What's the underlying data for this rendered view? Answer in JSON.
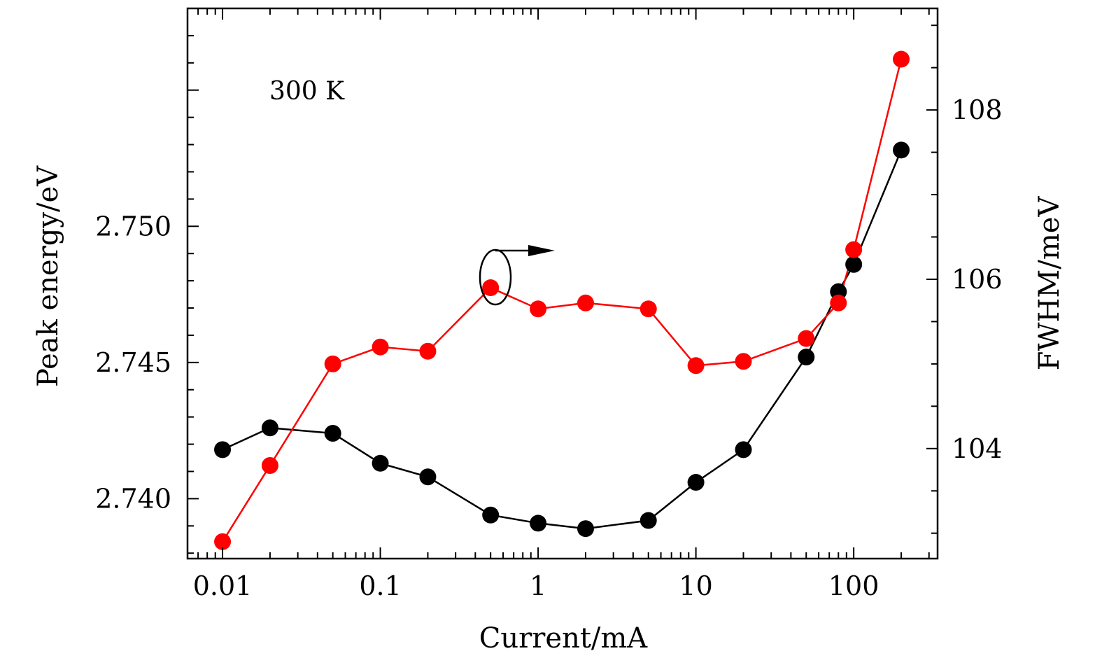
{
  "chart_data": {
    "type": "line",
    "annotation": "300 K",
    "xlabel": "Current/mA",
    "ylabel_left": "Peak energy/eV",
    "ylabel_right": "FWHM/meV",
    "x_scale": "log",
    "xlim": [
      0.006,
      340
    ],
    "ylim_left": [
      2.7378,
      2.758
    ],
    "ylim_right": [
      102.7,
      109.2
    ],
    "x_ticks": [
      {
        "value": 0.01,
        "label": "0.01"
      },
      {
        "value": 0.1,
        "label": "0.1"
      },
      {
        "value": 1,
        "label": "1"
      },
      {
        "value": 10,
        "label": "10"
      },
      {
        "value": 100,
        "label": "100"
      }
    ],
    "y_ticks_left": [
      {
        "value": 2.74,
        "label": "2.740"
      },
      {
        "value": 2.745,
        "label": "2.745"
      },
      {
        "value": 2.75,
        "label": "2.750"
      }
    ],
    "y_ticks_right": [
      {
        "value": 104,
        "label": "104"
      },
      {
        "value": 106,
        "label": "106"
      },
      {
        "value": 108,
        "label": "108"
      }
    ],
    "grid": false,
    "series": [
      {
        "axis": "left",
        "color": "#000000",
        "x": [
          0.01,
          0.02,
          0.05,
          0.1,
          0.2,
          0.5,
          1,
          2,
          5,
          10,
          20,
          50,
          80,
          100,
          200
        ],
        "values": [
          2.7418,
          2.7426,
          2.7424,
          2.7413,
          2.7408,
          2.7394,
          2.7391,
          2.7389,
          2.7392,
          2.7406,
          2.7418,
          2.7452,
          2.7476,
          2.7486,
          2.7528
        ]
      },
      {
        "axis": "right",
        "color": "#ff0000",
        "x": [
          0.01,
          0.02,
          0.05,
          0.1,
          0.2,
          0.5,
          1,
          2,
          5,
          10,
          20,
          50,
          80,
          100,
          200
        ],
        "values": [
          102.9,
          103.8,
          105.0,
          105.2,
          105.15,
          105.9,
          105.65,
          105.72,
          105.65,
          104.98,
          105.03,
          105.3,
          105.72,
          106.35,
          108.6
        ]
      }
    ],
    "marker_arrow": {
      "points_to": "right axis",
      "series_x": 0.5
    }
  }
}
